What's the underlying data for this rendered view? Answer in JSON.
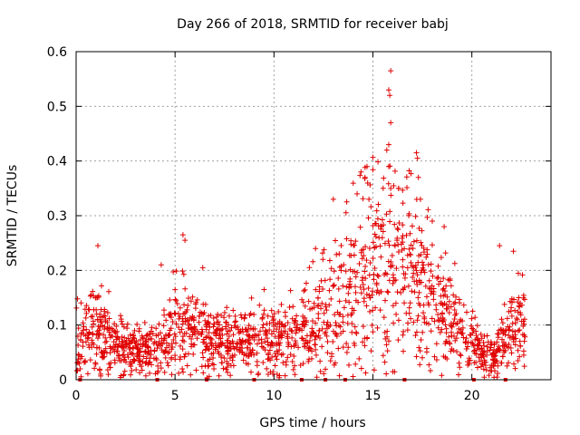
{
  "chart_data": {
    "type": "scatter",
    "title": "Day 266 of 2018, SRMTID for receiver babj",
    "xlabel": "GPS time / hours",
    "ylabel": "SRMTID / TECUs",
    "xlim": [
      0,
      24
    ],
    "ylim": [
      0,
      0.6
    ],
    "x_ticks": [
      0,
      5,
      10,
      15,
      20
    ],
    "x_tick_labels": [
      "0",
      "5",
      "10",
      "15",
      "20"
    ],
    "y_ticks": [
      0,
      0.1,
      0.2,
      0.3,
      0.4,
      0.5,
      0.6
    ],
    "y_tick_labels": [
      "0",
      "0.1",
      "0.2",
      "0.3",
      "0.4",
      "0.5",
      "0.6"
    ],
    "grid": true,
    "marker": "+",
    "series_color": "#e00000",
    "profile": {
      "x_range": [
        0.0,
        22.7
      ],
      "hours": [
        0,
        1,
        2,
        3,
        4,
        5,
        6,
        7,
        8,
        9,
        10,
        11,
        12,
        13,
        14,
        15,
        16,
        17,
        18,
        19,
        20,
        21,
        22,
        23
      ],
      "median_level": [
        0.07,
        0.1,
        0.07,
        0.05,
        0.05,
        0.1,
        0.09,
        0.07,
        0.07,
        0.07,
        0.07,
        0.08,
        0.1,
        0.13,
        0.18,
        0.2,
        0.22,
        0.19,
        0.15,
        0.11,
        0.06,
        0.04,
        0.09,
        0.1
      ]
    },
    "peaks": [
      {
        "x": 15.9,
        "y": 0.565
      },
      {
        "x": 15.8,
        "y": 0.53
      },
      {
        "x": 15.85,
        "y": 0.52
      },
      {
        "x": 15.9,
        "y": 0.47
      },
      {
        "x": 15.8,
        "y": 0.43
      },
      {
        "x": 15.7,
        "y": 0.42
      },
      {
        "x": 17.2,
        "y": 0.415
      },
      {
        "x": 17.25,
        "y": 0.405
      },
      {
        "x": 14.7,
        "y": 0.39
      },
      {
        "x": 15.8,
        "y": 0.39
      },
      {
        "x": 14.4,
        "y": 0.38
      },
      {
        "x": 14.6,
        "y": 0.37
      },
      {
        "x": 17.3,
        "y": 0.37
      },
      {
        "x": 15.9,
        "y": 0.35
      },
      {
        "x": 16.3,
        "y": 0.35
      },
      {
        "x": 14.2,
        "y": 0.34
      },
      {
        "x": 14.8,
        "y": 0.33
      },
      {
        "x": 17.4,
        "y": 0.33
      },
      {
        "x": 13.0,
        "y": 0.33
      },
      {
        "x": 18.0,
        "y": 0.29
      },
      {
        "x": 18.6,
        "y": 0.28
      },
      {
        "x": 5.4,
        "y": 0.265
      },
      {
        "x": 5.5,
        "y": 0.255
      },
      {
        "x": 1.1,
        "y": 0.245
      },
      {
        "x": 21.4,
        "y": 0.245
      },
      {
        "x": 22.1,
        "y": 0.235
      },
      {
        "x": 4.3,
        "y": 0.21
      },
      {
        "x": 6.4,
        "y": 0.205
      },
      {
        "x": 9.5,
        "y": 0.165
      },
      {
        "x": 12.1,
        "y": 0.24
      }
    ],
    "zero_markers_x": [
      0.2,
      4.1,
      6.6,
      9.0,
      11.4,
      12.6,
      13.6,
      16.6,
      20.1,
      21.7
    ]
  }
}
